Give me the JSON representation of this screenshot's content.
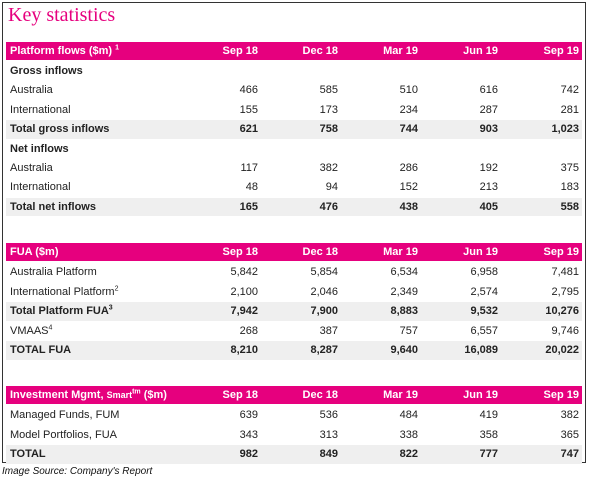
{
  "title": "Key statistics",
  "sections": [
    {
      "title": [
        {
          "text": "Platform flows ($m) "
        },
        {
          "text": "1",
          "sup": true
        }
      ],
      "columns": [
        "Sep 18",
        "Dec 18",
        "Mar 19",
        "Jun 19",
        "Sep 19"
      ],
      "rows": [
        {
          "label": "Gross inflows",
          "bold": true
        },
        {
          "label": "Australia",
          "values": [
            "466",
            "585",
            "510",
            "616",
            "742"
          ]
        },
        {
          "label": "International",
          "values": [
            "155",
            "173",
            "234",
            "287",
            "281"
          ]
        },
        {
          "label": "Total gross inflows",
          "bold": true,
          "shaded": true,
          "values": [
            "621",
            "758",
            "744",
            "903",
            "1,023"
          ]
        },
        {
          "label": "Net inflows",
          "bold": true
        },
        {
          "label": "Australia",
          "values": [
            "117",
            "382",
            "286",
            "192",
            "375"
          ]
        },
        {
          "label": "International",
          "values": [
            "48",
            "94",
            "152",
            "213",
            "183"
          ]
        },
        {
          "label": "Total net inflows",
          "bold": true,
          "shaded": true,
          "values": [
            "165",
            "476",
            "438",
            "405",
            "558"
          ]
        }
      ]
    },
    {
      "title": [
        {
          "text": "FUA ($m)"
        }
      ],
      "columns": [
        "Sep 18",
        "Dec 18",
        "Mar 19",
        "Jun 19",
        "Sep 19"
      ],
      "rows": [
        {
          "label": "Australia Platform",
          "values": [
            "5,842",
            "5,854",
            "6,534",
            "6,958",
            "7,481"
          ]
        },
        {
          "label": "International Platform",
          "sup": "2",
          "values": [
            "2,100",
            "2,046",
            "2,349",
            "2,574",
            "2,795"
          ]
        },
        {
          "label": "Total Platform FUA",
          "sup": "3",
          "bold": true,
          "shaded": true,
          "values": [
            "7,942",
            "7,900",
            "8,883",
            "9,532",
            "10,276"
          ]
        },
        {
          "label": "VMAAS",
          "sup": "4",
          "values": [
            "268",
            "387",
            "757",
            "6,557",
            "9,746"
          ]
        },
        {
          "label": "TOTAL FUA",
          "bold": true,
          "shaded": true,
          "values": [
            "8,210",
            "8,287",
            "9,640",
            "16,089",
            "20,022"
          ]
        }
      ]
    },
    {
      "title": [
        {
          "text": "Investment Mgmt, "
        },
        {
          "text": "Smart",
          "small": true
        },
        {
          "text": "tm",
          "sup": true
        },
        {
          "text": " ($m)"
        }
      ],
      "columns": [
        "Sep 18",
        "Dec 18",
        "Mar 19",
        "Jun 19",
        "Sep 19"
      ],
      "rows": [
        {
          "label": "Managed Funds, FUM",
          "values": [
            "639",
            "536",
            "484",
            "419",
            "382"
          ]
        },
        {
          "label": "Model Portfolios, FUA",
          "values": [
            "343",
            "313",
            "338",
            "358",
            "365"
          ]
        },
        {
          "label": "TOTAL",
          "bold": true,
          "shaded": true,
          "values": [
            "982",
            "849",
            "822",
            "777",
            "747"
          ]
        }
      ]
    }
  ],
  "caption": "Image Source: Company's Report"
}
